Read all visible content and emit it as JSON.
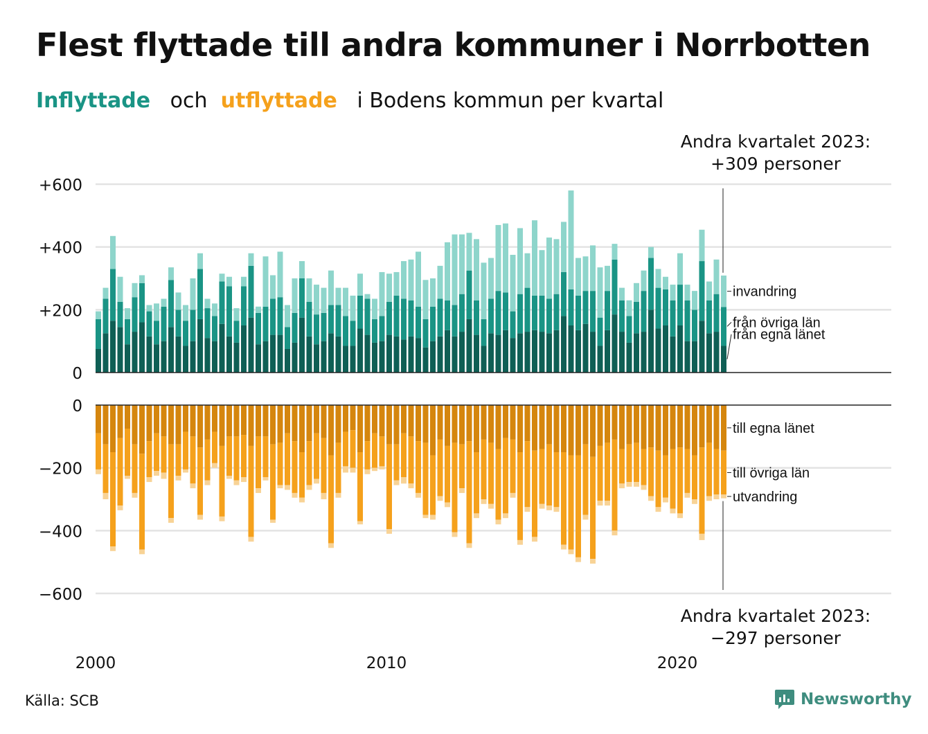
{
  "title": "Flest flyttade till andra kommuner i Norrbotten",
  "subtitle": {
    "in_word": "Inflyttade",
    "and": "och",
    "out_word": "utflyttade",
    "rest": "i Bodens kommun per kvartal"
  },
  "source": "Källa: SCB",
  "brand": "Newsworthy",
  "colors": {
    "in_own": "#0f5f55",
    "in_other": "#1a9485",
    "in_immig": "#8ed5cb",
    "out_own": "#d5860e",
    "out_other": "#f5a11c",
    "out_emig": "#f8d396",
    "grid": "#e3e3e3",
    "axis": "#222222"
  },
  "chart_data": {
    "type": "bar",
    "stacked": true,
    "x_start": "2000 Q1",
    "frequency": "quarter",
    "x_ticks": [
      "2000",
      "2010",
      "2020"
    ],
    "y_ticks_top": [
      "+600",
      "+400",
      "+200",
      "0"
    ],
    "y_ticks_bottom": [
      "0",
      "−200",
      "−400",
      "−600"
    ],
    "ylim_top": [
      0,
      600
    ],
    "ylim_bottom": [
      -600,
      0
    ],
    "annotation_top": [
      "Andra kvartalet 2023:",
      "+309 personer"
    ],
    "annotation_bottom": [
      "Andra kvartalet 2023:",
      "−297 personer"
    ],
    "series_in": [
      {
        "name": "från egna länet",
        "values": [
          75,
          125,
          165,
          145,
          90,
          130,
          160,
          115,
          90,
          100,
          145,
          115,
          85,
          100,
          170,
          110,
          100,
          155,
          115,
          95,
          150,
          175,
          90,
          100,
          120,
          120,
          75,
          95,
          175,
          115,
          90,
          100,
          125,
          115,
          85,
          85,
          140,
          120,
          95,
          100,
          120,
          115,
          105,
          115,
          110,
          80,
          100,
          115,
          135,
          115,
          130,
          170,
          120,
          85,
          125,
          120,
          135,
          110,
          125,
          130,
          135,
          130,
          125,
          135,
          180,
          150,
          135,
          155,
          130,
          85,
          135,
          185,
          130,
          95,
          125,
          130,
          200,
          140,
          150,
          115,
          150,
          100,
          100,
          165,
          125,
          130,
          85
        ]
      },
      {
        "name": "från övriga län",
        "values": [
          95,
          110,
          165,
          80,
          80,
          110,
          125,
          80,
          75,
          110,
          150,
          85,
          80,
          100,
          160,
          95,
          80,
          135,
          160,
          70,
          125,
          165,
          100,
          110,
          115,
          120,
          70,
          95,
          125,
          110,
          95,
          90,
          90,
          100,
          95,
          80,
          105,
          115,
          75,
          80,
          105,
          130,
          130,
          115,
          100,
          90,
          110,
          120,
          95,
          100,
          120,
          155,
          110,
          85,
          110,
          140,
          120,
          85,
          125,
          140,
          110,
          115,
          110,
          115,
          140,
          115,
          110,
          105,
          130,
          90,
          125,
          175,
          100,
          85,
          100,
          130,
          165,
          130,
          115,
          115,
          130,
          130,
          100,
          190,
          105,
          120,
          124
        ]
      },
      {
        "name": "invandring",
        "values": [
          25,
          35,
          105,
          80,
          35,
          45,
          25,
          20,
          55,
          25,
          40,
          55,
          50,
          100,
          50,
          30,
          40,
          25,
          30,
          40,
          30,
          40,
          20,
          160,
          75,
          145,
          70,
          110,
          55,
          75,
          95,
          80,
          110,
          55,
          90,
          80,
          70,
          15,
          65,
          140,
          90,
          75,
          120,
          130,
          175,
          125,
          90,
          105,
          185,
          225,
          190,
          120,
          195,
          180,
          130,
          210,
          220,
          180,
          210,
          110,
          240,
          145,
          195,
          175,
          160,
          315,
          120,
          110,
          145,
          160,
          80,
          50,
          40,
          50,
          60,
          65,
          35,
          60,
          40,
          50,
          100,
          50,
          60,
          100,
          60,
          110,
          100
        ]
      }
    ],
    "series_out": [
      {
        "name": "till egna länet",
        "values": [
          -90,
          -125,
          -150,
          -105,
          -75,
          -125,
          -155,
          -115,
          -90,
          -100,
          -125,
          -125,
          -85,
          -100,
          -135,
          -110,
          -85,
          -130,
          -100,
          -100,
          -95,
          -130,
          -100,
          -100,
          -125,
          -120,
          -90,
          -115,
          -150,
          -115,
          -90,
          -105,
          -160,
          -120,
          -85,
          -80,
          -150,
          -115,
          -90,
          -100,
          -125,
          -125,
          -90,
          -100,
          -115,
          -120,
          -160,
          -110,
          -130,
          -120,
          -125,
          -115,
          -150,
          -110,
          -120,
          -140,
          -105,
          -110,
          -150,
          -115,
          -145,
          -140,
          -125,
          -150,
          -150,
          -160,
          -160,
          -125,
          -165,
          -130,
          -120,
          -110,
          -140,
          -125,
          -120,
          -140,
          -135,
          -145,
          -160,
          -140,
          -135,
          -140,
          -160,
          -135,
          -120,
          -140,
          -145
        ]
      },
      {
        "name": "till övriga län",
        "values": [
          -115,
          -155,
          -300,
          -215,
          -150,
          -155,
          -305,
          -115,
          -120,
          -115,
          -235,
          -100,
          -120,
          -150,
          -215,
          -130,
          -100,
          -225,
          -125,
          -140,
          -135,
          -290,
          -165,
          -130,
          -240,
          -135,
          -165,
          -165,
          -145,
          -140,
          -145,
          -175,
          -280,
          -160,
          -110,
          -120,
          -220,
          -90,
          -110,
          -95,
          -270,
          -115,
          -140,
          -150,
          -165,
          -230,
          -190,
          -180,
          -180,
          -285,
          -140,
          -325,
          -195,
          -190,
          -195,
          -225,
          -240,
          -170,
          -280,
          -210,
          -275,
          -175,
          -195,
          -175,
          -295,
          -300,
          -325,
          -225,
          -325,
          -175,
          -185,
          -290,
          -110,
          -120,
          -125,
          -115,
          -155,
          -180,
          -135,
          -190,
          -210,
          -140,
          -140,
          -275,
          -170,
          -145,
          -140
        ]
      },
      {
        "name": "utvandring",
        "values": [
          -15,
          -20,
          -15,
          -15,
          -10,
          -15,
          -15,
          -15,
          -15,
          -20,
          -15,
          -15,
          -10,
          -15,
          -15,
          -15,
          -15,
          -15,
          -10,
          -15,
          -15,
          -15,
          -15,
          -10,
          -10,
          -10,
          -15,
          -15,
          -15,
          -15,
          -15,
          -20,
          -15,
          -15,
          -20,
          -15,
          -10,
          -15,
          -10,
          -10,
          -15,
          -15,
          -20,
          -15,
          -15,
          -10,
          -15,
          -15,
          -15,
          -15,
          -15,
          -15,
          -15,
          -15,
          -15,
          -15,
          -15,
          -15,
          -15,
          -15,
          -15,
          -15,
          -15,
          -15,
          -15,
          -15,
          -15,
          -15,
          -15,
          -15,
          -15,
          -15,
          -15,
          -15,
          -15,
          -15,
          -15,
          -15,
          -15,
          -15,
          -15,
          -15,
          -15,
          -20,
          -15,
          -15,
          -12
        ]
      }
    ]
  }
}
